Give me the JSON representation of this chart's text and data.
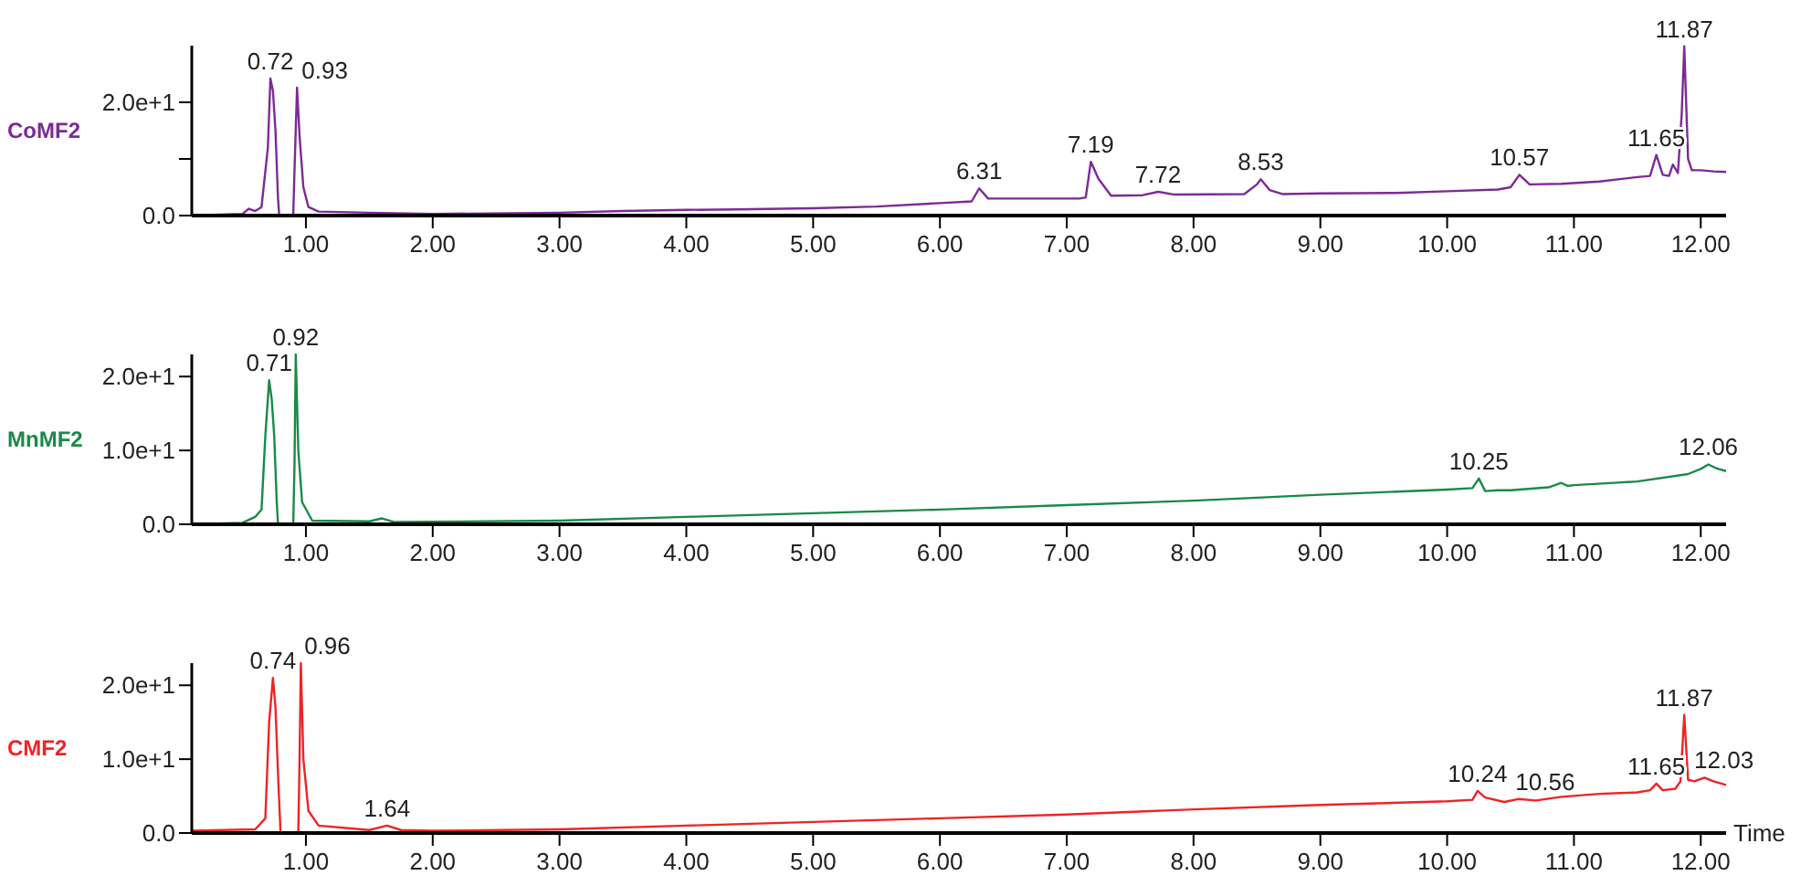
{
  "chart_data": [
    {
      "type": "line",
      "xlim": [
        0.1,
        12.2
      ],
      "xticks": [
        {
          "value": 1,
          "label": "1.00"
        },
        {
          "value": 2,
          "label": "2.00"
        },
        {
          "value": 3,
          "label": "3.00"
        },
        {
          "value": 4,
          "label": "4.00"
        },
        {
          "value": 5,
          "label": "5.00"
        },
        {
          "value": 6,
          "label": "6.00"
        },
        {
          "value": 7,
          "label": "7.00"
        },
        {
          "value": 8,
          "label": "8.00"
        },
        {
          "value": 9,
          "label": "9.00"
        },
        {
          "value": 10,
          "label": "10.00"
        },
        {
          "value": 11,
          "label": "11.00"
        },
        {
          "value": 12,
          "label": "12.00"
        }
      ],
      "ylim": [
        0,
        30
      ],
      "yticks": [
        {
          "value": 0,
          "label": "0.0"
        },
        {
          "value": 10,
          "label": null
        },
        {
          "value": 20,
          "label": "2.0e+1"
        }
      ],
      "series": [
        {
          "name": "CoMF2",
          "color": "#7d2a96",
          "x": [
            0.1,
            0.5,
            0.55,
            0.6,
            0.65,
            0.7,
            0.72,
            0.74,
            0.76,
            0.78,
            0.79,
            0.9,
            0.91,
            0.93,
            0.95,
            0.98,
            1.02,
            1.1,
            1.5,
            2.0,
            3.0,
            3.5,
            4.0,
            4.4,
            5.0,
            5.5,
            6.0,
            6.25,
            6.31,
            6.38,
            6.5,
            7.1,
            7.15,
            7.19,
            7.25,
            7.35,
            7.6,
            7.72,
            7.85,
            8.4,
            8.5,
            8.53,
            8.6,
            8.7,
            9.0,
            9.6,
            10.0,
            10.4,
            10.5,
            10.57,
            10.65,
            10.9,
            11.2,
            11.5,
            11.6,
            11.65,
            11.7,
            11.75,
            11.78,
            11.82,
            11.85,
            11.87,
            11.9,
            11.93,
            12.0,
            12.1,
            12.2
          ],
          "values": [
            0,
            0.3,
            1.2,
            0.8,
            1.5,
            12,
            24.2,
            22,
            15,
            3,
            0,
            0,
            8,
            22.6,
            14,
            5,
            1.5,
            0.7,
            0.5,
            0.3,
            0.5,
            0.8,
            1.0,
            1.1,
            1.3,
            1.6,
            2.2,
            2.5,
            4.8,
            3.0,
            3.0,
            3.0,
            3.2,
            9.5,
            6.5,
            3.5,
            3.6,
            4.2,
            3.7,
            3.8,
            5.5,
            6.4,
            4.5,
            3.8,
            3.9,
            4.0,
            4.3,
            4.6,
            5.0,
            7.2,
            5.5,
            5.6,
            6.0,
            6.8,
            7.0,
            10.7,
            7.2,
            7.0,
            9.0,
            7.5,
            18,
            29.9,
            10,
            8.0,
            8.0,
            7.8,
            7.7
          ]
        }
      ],
      "annotations": [
        {
          "text": "0.72",
          "x": 0.72,
          "y": 24.2
        },
        {
          "text": "0.93",
          "x": 0.93,
          "y": 22.6
        },
        {
          "text": "6.31",
          "x": 6.31,
          "y": 4.8
        },
        {
          "text": "7.19",
          "x": 7.19,
          "y": 9.5
        },
        {
          "text": "7.72",
          "x": 7.72,
          "y": 4.2
        },
        {
          "text": "8.53",
          "x": 8.53,
          "y": 6.4
        },
        {
          "text": "10.57",
          "x": 10.57,
          "y": 7.2
        },
        {
          "text": "11.65",
          "x": 11.65,
          "y": 10.7
        },
        {
          "text": "11.87",
          "x": 11.87,
          "y": 29.9
        }
      ]
    },
    {
      "type": "line",
      "xlim": [
        0.1,
        12.2
      ],
      "xticks": [
        {
          "value": 1,
          "label": "1.00"
        },
        {
          "value": 2,
          "label": "2.00"
        },
        {
          "value": 3,
          "label": "3.00"
        },
        {
          "value": 4,
          "label": "4.00"
        },
        {
          "value": 5,
          "label": "5.00"
        },
        {
          "value": 6,
          "label": "6.00"
        },
        {
          "value": 7,
          "label": "7.00"
        },
        {
          "value": 8,
          "label": "8.00"
        },
        {
          "value": 9,
          "label": "9.00"
        },
        {
          "value": 10,
          "label": "10.00"
        },
        {
          "value": 11,
          "label": "11.00"
        },
        {
          "value": 12,
          "label": "12.00"
        }
      ],
      "ylim": [
        0,
        23
      ],
      "yticks": [
        {
          "value": 0,
          "label": "0.0"
        },
        {
          "value": 10,
          "label": "1.0e+1"
        },
        {
          "value": 20,
          "label": "2.0e+1"
        }
      ],
      "series": [
        {
          "name": "MnMF2",
          "color": "#1a8a48",
          "x": [
            0.1,
            0.5,
            0.6,
            0.65,
            0.68,
            0.71,
            0.73,
            0.75,
            0.77,
            0.78,
            0.9,
            0.91,
            0.92,
            0.94,
            0.97,
            1.05,
            1.5,
            1.6,
            1.7,
            3.0,
            4.0,
            5.0,
            6.0,
            7.0,
            8.0,
            9.0,
            10.0,
            10.2,
            10.25,
            10.3,
            10.4,
            10.5,
            10.8,
            10.9,
            10.95,
            11.0,
            11.5,
            11.9,
            12.0,
            12.06,
            12.12,
            12.2
          ],
          "values": [
            0,
            0.2,
            1.0,
            2.0,
            12,
            19.5,
            17,
            12,
            3,
            0,
            0,
            8,
            23,
            10,
            3,
            0.5,
            0.4,
            0.8,
            0.3,
            0.5,
            1.0,
            1.5,
            2.0,
            2.6,
            3.2,
            4.0,
            4.7,
            4.9,
            6.2,
            4.5,
            4.6,
            4.6,
            5.0,
            5.6,
            5.2,
            5.3,
            5.8,
            6.8,
            7.5,
            8.1,
            7.6,
            7.2
          ]
        }
      ],
      "annotations": [
        {
          "text": "0.71",
          "x": 0.71,
          "y": 19.5
        },
        {
          "text": "0.92",
          "x": 0.92,
          "y": 23
        },
        {
          "text": "10.25",
          "x": 10.25,
          "y": 6.2
        },
        {
          "text": "12.06",
          "x": 12.06,
          "y": 8.1
        }
      ]
    },
    {
      "type": "line",
      "xlabel": "Time",
      "xlim": [
        0.1,
        12.2
      ],
      "xticks": [
        {
          "value": 1,
          "label": "1.00"
        },
        {
          "value": 2,
          "label": "2.00"
        },
        {
          "value": 3,
          "label": "3.00"
        },
        {
          "value": 4,
          "label": "4.00"
        },
        {
          "value": 5,
          "label": "5.00"
        },
        {
          "value": 6,
          "label": "6.00"
        },
        {
          "value": 7,
          "label": "7.00"
        },
        {
          "value": 8,
          "label": "8.00"
        },
        {
          "value": 9,
          "label": "9.00"
        },
        {
          "value": 10,
          "label": "10.00"
        },
        {
          "value": 11,
          "label": "11.00"
        },
        {
          "value": 12,
          "label": "12.00"
        }
      ],
      "ylim": [
        0,
        23
      ],
      "yticks": [
        {
          "value": 0,
          "label": "0.0"
        },
        {
          "value": 10,
          "label": "1.0e+1"
        },
        {
          "value": 20,
          "label": "2.0e+1"
        }
      ],
      "series": [
        {
          "name": "CMF2",
          "color": "#ee2424",
          "x": [
            0.1,
            0.6,
            0.68,
            0.71,
            0.74,
            0.76,
            0.78,
            0.8,
            0.81,
            0.94,
            0.95,
            0.96,
            0.98,
            1.02,
            1.1,
            1.5,
            1.64,
            1.75,
            2.0,
            3.0,
            4.0,
            5.0,
            6.0,
            7.0,
            8.0,
            9.0,
            10.0,
            10.2,
            10.24,
            10.3,
            10.45,
            10.56,
            10.7,
            10.9,
            11.2,
            11.5,
            11.6,
            11.65,
            11.7,
            11.8,
            11.84,
            11.87,
            11.9,
            11.95,
            12.03,
            12.1,
            12.2
          ],
          "values": [
            0.3,
            0.5,
            2,
            15,
            21,
            17,
            8,
            0,
            0,
            0,
            10,
            23,
            10,
            3,
            1,
            0.4,
            1.0,
            0.4,
            0.3,
            0.5,
            1.0,
            1.5,
            2.0,
            2.5,
            3.2,
            3.8,
            4.3,
            4.5,
            5.7,
            4.8,
            4.2,
            4.6,
            4.4,
            4.9,
            5.3,
            5.5,
            5.8,
            6.7,
            5.8,
            6.0,
            7,
            16,
            7.2,
            7.0,
            7.5,
            7.0,
            6.5
          ]
        }
      ],
      "annotations": [
        {
          "text": "0.74",
          "x": 0.74,
          "y": 21
        },
        {
          "text": "0.96",
          "x": 0.96,
          "y": 23
        },
        {
          "text": "1.64",
          "x": 1.64,
          "y": 1.0
        },
        {
          "text": "10.24",
          "x": 10.24,
          "y": 5.7
        },
        {
          "text": "10.56",
          "x": 10.56,
          "y": 4.6
        },
        {
          "text": "11.65",
          "x": 11.65,
          "y": 6.7
        },
        {
          "text": "11.87",
          "x": 11.87,
          "y": 16
        },
        {
          "text": "12.03",
          "x": 12.03,
          "y": 7.5
        }
      ]
    }
  ]
}
